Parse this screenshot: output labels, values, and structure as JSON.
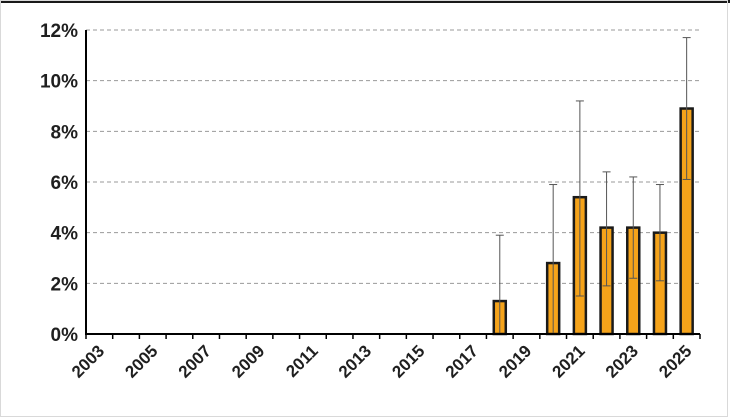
{
  "chart_data": {
    "type": "bar",
    "title": "",
    "xlabel": "",
    "ylabel": "",
    "y_unit": "%",
    "ylim": [
      0,
      12
    ],
    "y_ticks": [
      0,
      2,
      4,
      6,
      8,
      10,
      12
    ],
    "y_tick_labels": [
      "0%",
      "2%",
      "4%",
      "6%",
      "8%",
      "10%",
      "12%"
    ],
    "x_tick_labels": [
      "2003",
      "2005",
      "2007",
      "2009",
      "2011",
      "2013",
      "2015",
      "2017",
      "2019",
      "2021",
      "2023",
      "2025"
    ],
    "grid": "horizontal dashed",
    "legend": "none",
    "categories": [
      "2003",
      "2004",
      "2005",
      "2006",
      "2007",
      "2008",
      "2009",
      "2010",
      "2011",
      "2012",
      "2013",
      "2014",
      "2015",
      "2016",
      "2017",
      "2018",
      "2019",
      "2020",
      "2021",
      "2022",
      "2023",
      "2024",
      "2025"
    ],
    "values": [
      null,
      null,
      null,
      null,
      null,
      null,
      null,
      null,
      null,
      null,
      null,
      null,
      null,
      null,
      null,
      1.3,
      null,
      2.8,
      5.4,
      4.2,
      4.2,
      4.0,
      8.9
    ],
    "error_low": [
      null,
      null,
      null,
      null,
      null,
      null,
      null,
      null,
      null,
      null,
      null,
      null,
      null,
      null,
      null,
      0.0,
      null,
      0.0,
      1.5,
      1.9,
      2.2,
      2.1,
      6.1
    ],
    "error_high": [
      null,
      null,
      null,
      null,
      null,
      null,
      null,
      null,
      null,
      null,
      null,
      null,
      null,
      null,
      null,
      3.9,
      null,
      5.9,
      9.2,
      6.4,
      6.2,
      5.9,
      11.7
    ],
    "colors": {
      "bar_fill": "#f5a31a",
      "bar_stroke": "#1a1a1a",
      "error_bar": "#555555",
      "grid": "#9a9a9a",
      "axis": "#000000"
    }
  }
}
